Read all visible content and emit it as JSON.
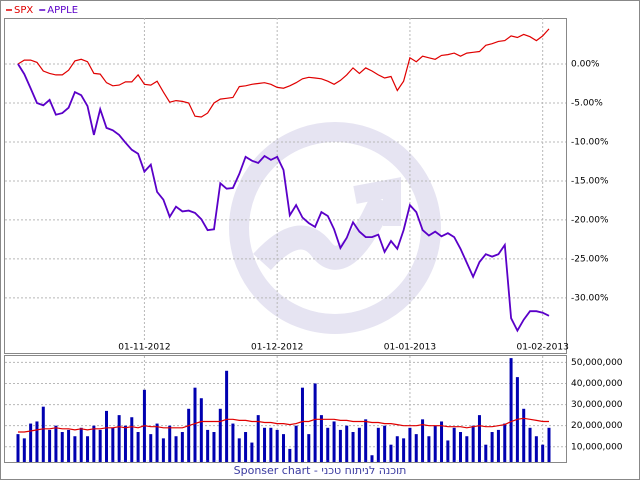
{
  "chart_data": [
    {
      "type": "line",
      "legend": "top-left",
      "grid": true,
      "categories": [
        null,
        null,
        null,
        null,
        null,
        null,
        null,
        null,
        null,
        null,
        null,
        null,
        null,
        null,
        null,
        null,
        null,
        null,
        null,
        null,
        "01-11-2012",
        null,
        null,
        null,
        null,
        null,
        null,
        null,
        null,
        null,
        null,
        null,
        null,
        null,
        null,
        null,
        null,
        null,
        null,
        null,
        null,
        "01-12-2012",
        null,
        null,
        null,
        null,
        null,
        null,
        null,
        null,
        null,
        null,
        null,
        null,
        null,
        null,
        null,
        null,
        null,
        null,
        null,
        null,
        "01-01-2013",
        null,
        null,
        null,
        null,
        null,
        null,
        null,
        null,
        null,
        null,
        null,
        null,
        null,
        null,
        null,
        null,
        null,
        null,
        null,
        null,
        "01-02-2013",
        null
      ],
      "series": [
        {
          "name": "SPX",
          "color": "#e00000",
          "values": [
            0,
            0.5,
            0.5,
            0.2,
            -0.9,
            -1.2,
            -1.4,
            -1.4,
            -0.8,
            0.4,
            0.6,
            0.3,
            -1.2,
            -1.3,
            -2.4,
            -2.8,
            -2.7,
            -2.3,
            -2.3,
            -1.4,
            -2.6,
            -2.7,
            -2.2,
            -3.6,
            -4.9,
            -4.7,
            -4.8,
            -5.0,
            -6.7,
            -6.8,
            -6.3,
            -5.0,
            -4.5,
            -4.4,
            -4.3,
            -2.9,
            -2.8,
            -2.6,
            -2.5,
            -2.4,
            -2.6,
            -3.0,
            -3.1,
            -2.8,
            -2.4,
            -1.9,
            -1.7,
            -1.8,
            -1.9,
            -2.2,
            -2.6,
            -2.1,
            -1.4,
            -0.5,
            -1.2,
            -0.5,
            -0.9,
            -1.4,
            -1.8,
            -1.6,
            -3.4,
            -2.2,
            0.8,
            0.3,
            1.0,
            0.8,
            0.6,
            1.1,
            1.2,
            1.4,
            1.0,
            1.4,
            1.5,
            1.6,
            2.4,
            2.6,
            2.9,
            3.0,
            3.6,
            3.4,
            3.8,
            3.5,
            3.0,
            3.6,
            4.5
          ]
        },
        {
          "name": "APPLE",
          "color": "#5a00c8",
          "values": [
            0,
            -1.3,
            -3.1,
            -5.0,
            -5.3,
            -4.6,
            -6.5,
            -6.3,
            -5.6,
            -3.6,
            -4.0,
            -5.4,
            -9.1,
            -5.8,
            -8.2,
            -8.5,
            -9.1,
            -10.1,
            -11.0,
            -11.5,
            -13.8,
            -12.9,
            -16.4,
            -17.4,
            -19.6,
            -18.3,
            -18.9,
            -18.8,
            -19.1,
            -19.9,
            -21.3,
            -21.2,
            -15.3,
            -16.0,
            -15.9,
            -14.1,
            -11.9,
            -12.4,
            -12.7,
            -11.8,
            -12.3,
            -11.9,
            -13.6,
            -19.4,
            -18.1,
            -19.7,
            -20.4,
            -20.9,
            -19.0,
            -19.5,
            -21.2,
            -23.6,
            -22.3,
            -20.3,
            -21.5,
            -22.2,
            -22.2,
            -21.9,
            -24.1,
            -22.7,
            -23.7,
            -21.3,
            -18.1,
            -19.0,
            -21.3,
            -22.0,
            -21.5,
            -22.1,
            -21.7,
            -22.2,
            -23.7,
            -25.5,
            -27.3,
            -25.4,
            -24.4,
            -24.7,
            -24.4,
            -23.2,
            -32.6,
            -34.2,
            -32.8,
            -31.7,
            -31.7,
            -31.9,
            -32.3
          ]
        }
      ],
      "ylim": [
        -35.4,
        5.9
      ],
      "yticks": [
        {
          "value": 0,
          "label": "0.00%"
        },
        {
          "value": -5,
          "label": "-5.00%"
        },
        {
          "value": -10,
          "label": "-10.00%"
        },
        {
          "value": -15,
          "label": "-15.00%"
        },
        {
          "value": -20,
          "label": "-20.00%"
        },
        {
          "value": -25,
          "label": "-25.00%"
        },
        {
          "value": -30,
          "label": "-30.00%"
        }
      ]
    },
    {
      "type": "bar",
      "grid": true,
      "series": [
        {
          "type": "bar",
          "color": "#0000b0",
          "values": [
            16000000,
            14000000,
            21000000,
            22000000,
            29000000,
            18000000,
            20000000,
            17000000,
            18000000,
            15000000,
            19000000,
            15000000,
            20000000,
            18000000,
            27000000,
            19000000,
            25000000,
            20000000,
            24000000,
            17000000,
            37000000,
            16000000,
            21000000,
            14000000,
            20000000,
            15000000,
            17000000,
            28000000,
            38000000,
            33000000,
            18000000,
            17000000,
            28000000,
            46000000,
            21000000,
            14000000,
            17000000,
            12000000,
            25000000,
            19000000,
            19000000,
            18000000,
            16000000,
            9000000,
            20000000,
            38000000,
            16000000,
            40000000,
            25000000,
            19000000,
            22000000,
            18000000,
            20000000,
            17000000,
            19000000,
            23000000,
            6000000,
            19000000,
            20000000,
            11000000,
            15000000,
            14000000,
            19000000,
            16000000,
            23000000,
            15000000,
            20000000,
            22000000,
            13000000,
            19000000,
            17000000,
            15000000,
            20000000,
            25000000,
            11000000,
            17000000,
            18000000,
            21000000,
            52000000,
            43000000,
            28000000,
            19000000,
            15000000,
            11000000,
            19000000
          ]
        },
        {
          "type": "line",
          "color": "#e00000",
          "values": [
            17000000,
            17000000,
            17500000,
            18000000,
            18500000,
            18500000,
            19000000,
            18500000,
            18500000,
            18000000,
            18500000,
            18000000,
            18500000,
            18500000,
            19000000,
            19000000,
            19500000,
            19000000,
            19500000,
            19000000,
            20000000,
            19500000,
            19500000,
            19000000,
            19000000,
            19000000,
            19000000,
            20000000,
            21000000,
            22000000,
            22000000,
            22000000,
            22000000,
            23000000,
            23000000,
            22500000,
            22500000,
            22000000,
            22000000,
            21500000,
            21500000,
            21000000,
            21000000,
            20500000,
            21000000,
            22000000,
            22000000,
            23000000,
            23000000,
            23000000,
            23000000,
            22500000,
            22500000,
            22000000,
            22000000,
            22000000,
            21500000,
            21500000,
            21000000,
            21000000,
            20500000,
            20000000,
            20000000,
            20000000,
            20500000,
            20000000,
            20000000,
            20000000,
            19500000,
            19500000,
            19500000,
            19000000,
            19500000,
            20000000,
            19500000,
            19500000,
            20000000,
            20500000,
            22000000,
            23000000,
            23500000,
            23000000,
            22500000,
            22000000,
            22000000
          ]
        }
      ],
      "ylim": [
        2800000,
        53000000
      ],
      "yticks": [
        {
          "value": 10000000,
          "label": "10,000,000"
        },
        {
          "value": 20000000,
          "label": "20,000,000"
        },
        {
          "value": 30000000,
          "label": "30,000,000"
        },
        {
          "value": 40000000,
          "label": "40,000,000"
        },
        {
          "value": 50000000,
          "label": "50,000,000"
        }
      ]
    }
  ],
  "footer": "Sponser chart - תוכנה לניתוח טכני"
}
